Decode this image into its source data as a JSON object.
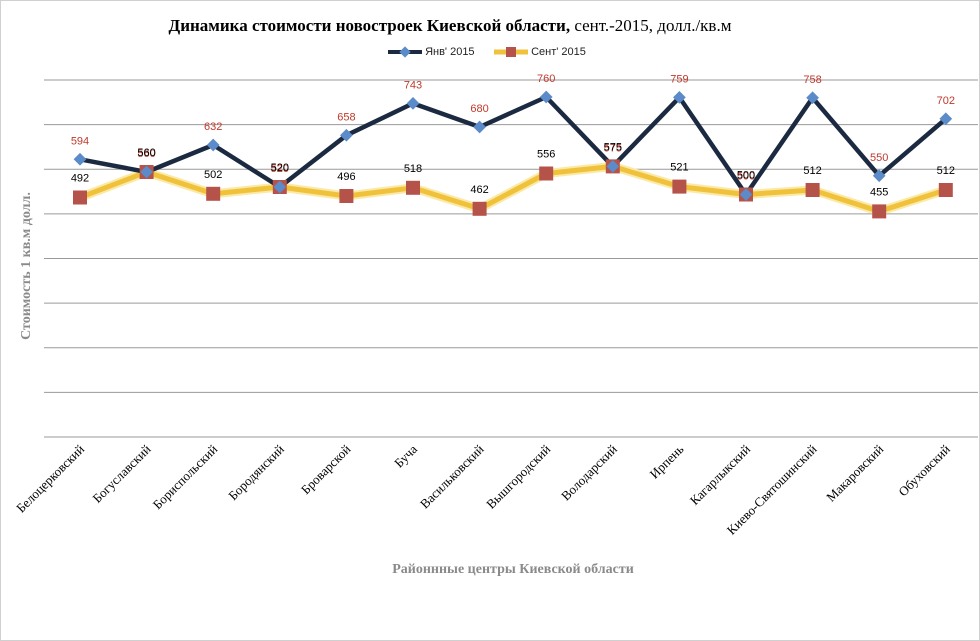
{
  "chart_data": {
    "type": "line",
    "title_bold": "Динамика стоимости новостроек Киевской области,",
    "title_rest": " сент.-2015, долл./кв.м",
    "xlabel": "Районнные центры Киевской области",
    "ylabel": "Стоимость 1 кв.м долл.",
    "ylim": [
      0,
      800
    ],
    "grid": true,
    "legend_position": "top-center",
    "categories": [
      "Белоцерковский",
      "Богуславский",
      "Бориспольский",
      "Бородянский",
      "Броварской",
      "Буча",
      "Васильковский",
      "Вышгородский",
      "Володарский",
      "Ирпень",
      "Кагарлыкский",
      "Киево-Святошинский",
      "Макаровский",
      "Обуховский"
    ],
    "series": [
      {
        "name": "Янв' 2015",
        "color": "#1b2a41",
        "marker_color": "#5b8bc9",
        "label_color": "#c0392b",
        "values": [
          594,
          560,
          632,
          520,
          658,
          743,
          680,
          760,
          575,
          759,
          500,
          758,
          550,
          702
        ]
      },
      {
        "name": "Сент' 2015",
        "color": "#f0c23c",
        "marker_color": "#b5534a",
        "label_color": "#000000",
        "values": [
          492,
          560,
          502,
          520,
          496,
          518,
          462,
          556,
          575,
          521,
          500,
          512,
          455,
          512
        ]
      }
    ]
  }
}
